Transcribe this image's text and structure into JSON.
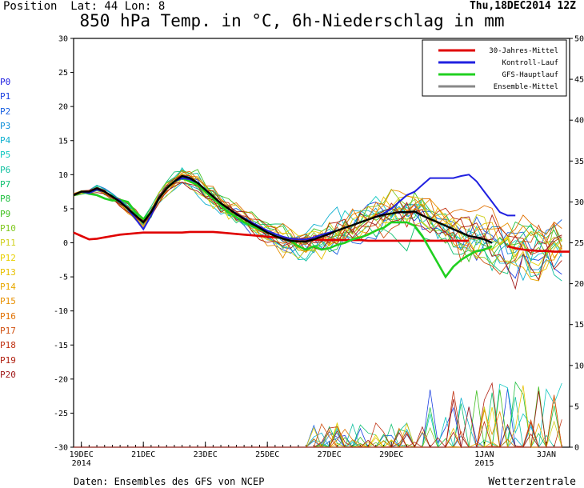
{
  "header": {
    "position": "Position  Lat: 44 Lon: 8",
    "datestamp": "Thu,18DEC2014 12Z",
    "title": "850 hPa Temp. in °C, 6h-Niederschlag in mm"
  },
  "footer": {
    "source": "Daten: Ensembles des GFS von NCEP",
    "brand": "Wetterzentrale"
  },
  "members": [
    {
      "label": "P0",
      "color": "#2020e0"
    },
    {
      "label": "P1",
      "color": "#1c40e0"
    },
    {
      "label": "P2",
      "color": "#1860e0"
    },
    {
      "label": "P3",
      "color": "#1090d8"
    },
    {
      "label": "P4",
      "color": "#10b0d0"
    },
    {
      "label": "P5",
      "color": "#10c8c0"
    },
    {
      "label": "P6",
      "color": "#10c0a0"
    },
    {
      "label": "P7",
      "color": "#10c070"
    },
    {
      "label": "P8",
      "color": "#20c040"
    },
    {
      "label": "P9",
      "color": "#40c020"
    },
    {
      "label": "P10",
      "color": "#80c820"
    },
    {
      "label": "P11",
      "color": "#d0d020"
    },
    {
      "label": "P12",
      "color": "#e8d000"
    },
    {
      "label": "P13",
      "color": "#e8c000"
    },
    {
      "label": "P14",
      "color": "#e8a800"
    },
    {
      "label": "P15",
      "color": "#e89000"
    },
    {
      "label": "P16",
      "color": "#e07000"
    },
    {
      "label": "P17",
      "color": "#d05010"
    },
    {
      "label": "P18",
      "color": "#c03010"
    },
    {
      "label": "P19",
      "color": "#b02010"
    },
    {
      "label": "P20",
      "color": "#a01818"
    }
  ],
  "chart_data": {
    "type": "line",
    "y_left_range": [
      -30,
      30
    ],
    "y_left_ticks": [
      30,
      25,
      20,
      15,
      10,
      5,
      0,
      -5,
      -10,
      -15,
      -20,
      -25,
      -30
    ],
    "y_right_range": [
      0,
      50
    ],
    "y_right_ticks": [
      50,
      45,
      40,
      35,
      30,
      25,
      20,
      15,
      10,
      5,
      0
    ],
    "x_ticks": [
      {
        "label": "19DEC",
        "sub": "2014",
        "t": 6
      },
      {
        "label": "21DEC",
        "sub": "",
        "t": 54
      },
      {
        "label": "23DEC",
        "sub": "",
        "t": 102
      },
      {
        "label": "25DEC",
        "sub": "",
        "t": 150
      },
      {
        "label": "27DEC",
        "sub": "",
        "t": 198
      },
      {
        "label": "29DEC",
        "sub": "",
        "t": 246
      },
      {
        "label": "1JAN",
        "sub": "2015",
        "t": 318
      },
      {
        "label": "3JAN",
        "sub": "",
        "t": 366
      }
    ],
    "x_range_hours": [
      0,
      384
    ],
    "grid": false,
    "legend_position": "top-right",
    "legend": [
      {
        "name": "30-Jahres-Mittel",
        "color": "#e00000"
      },
      {
        "name": "Kontroll-Lauf",
        "color": "#2020e0"
      },
      {
        "name": "GFS-Hauptlauf",
        "color": "#20d020"
      },
      {
        "name": "Ensemble-Mittel",
        "color": "#888888"
      }
    ],
    "temperature_series": {
      "t_step_hours": 6,
      "climate": [
        1.5,
        1.0,
        0.5,
        0.6,
        0.8,
        1.0,
        1.2,
        1.3,
        1.4,
        1.5,
        1.5,
        1.5,
        1.5,
        1.5,
        1.5,
        1.6,
        1.6,
        1.6,
        1.6,
        1.5,
        1.4,
        1.3,
        1.2,
        1.1,
        1.0,
        0.9,
        0.8,
        0.7,
        0.6,
        0.5,
        0.5,
        0.4,
        0.4,
        0.4,
        0.4,
        0.4,
        0.4,
        0.4,
        0.3,
        0.3,
        0.3,
        0.3,
        0.3,
        0.3,
        0.3,
        0.3,
        0.3,
        0.3,
        0.3,
        0.3,
        0.3,
        0.3,
        null,
        null,
        null,
        null,
        -0.5,
        -0.8,
        -1.0,
        -1.1,
        -1.2,
        -1.2,
        -1.3,
        -1.3,
        -1.3
      ],
      "control": [
        7.0,
        7.5,
        7.3,
        7.8,
        7.5,
        6.8,
        6.2,
        5.0,
        3.5,
        2.0,
        4.0,
        6.5,
        8.0,
        9.0,
        9.5,
        9.3,
        8.8,
        7.8,
        6.8,
        5.8,
        5.0,
        4.3,
        3.6,
        3.0,
        2.4,
        1.8,
        1.3,
        0.9,
        0.6,
        0.5,
        0.5,
        0.8,
        1.2,
        1.5,
        1.8,
        2.2,
        2.6,
        3.0,
        3.4,
        3.8,
        4.3,
        5.0,
        6.0,
        7.0,
        7.5,
        8.5,
        9.5,
        9.5,
        9.5,
        9.5,
        9.8,
        10.0,
        9.0,
        7.5,
        6.0,
        4.5,
        4.0,
        4.0
      ],
      "hauptlauf": [
        7.0,
        7.5,
        7.2,
        7.0,
        6.5,
        6.2,
        6.3,
        6.0,
        4.5,
        3.5,
        4.5,
        6.5,
        8.0,
        9.0,
        9.5,
        9.0,
        8.5,
        7.5,
        6.5,
        5.5,
        4.5,
        3.8,
        3.0,
        2.5,
        2.0,
        1.5,
        1.0,
        0.6,
        0.3,
        -0.5,
        -1.0,
        -0.5,
        -1.0,
        -0.8,
        -0.3,
        0.0,
        0.5,
        0.8,
        1.2,
        1.8,
        2.2,
        3.0,
        3.0,
        3.0,
        2.5,
        1.0,
        -1.0,
        -3.0,
        -5.0,
        -3.5,
        -2.5,
        -1.8,
        -1.2,
        -1.0,
        -0.5
      ],
      "mean": [
        7.0,
        7.5,
        7.5,
        8.0,
        7.5,
        6.8,
        6.0,
        5.0,
        4.0,
        3.0,
        4.5,
        6.5,
        8.0,
        9.0,
        9.8,
        9.5,
        8.8,
        7.8,
        6.8,
        5.8,
        5.0,
        4.2,
        3.5,
        2.8,
        2.2,
        1.5,
        1.0,
        0.6,
        0.3,
        0.2,
        0.2,
        0.5,
        0.9,
        1.3,
        1.8,
        2.2,
        2.6,
        3.0,
        3.4,
        3.8,
        4.1,
        4.3,
        4.5,
        4.5,
        4.6,
        4.0,
        3.5,
        3.0,
        2.5,
        2.0,
        1.5,
        1.0,
        0.8,
        0.5,
        0.0
      ]
    }
  }
}
